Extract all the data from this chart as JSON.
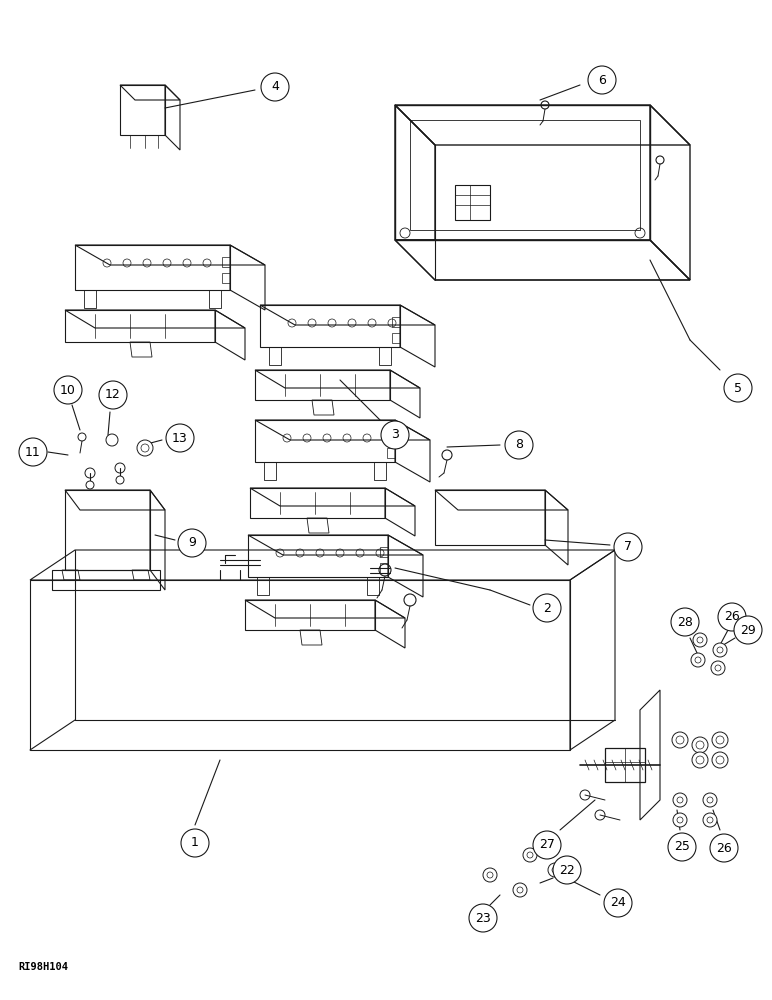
{
  "bg_color": "#ffffff",
  "lc": "#1a1a1a",
  "footer_text": "RI98H104",
  "fig_w": 7.72,
  "fig_h": 10.0,
  "dpi": 100
}
